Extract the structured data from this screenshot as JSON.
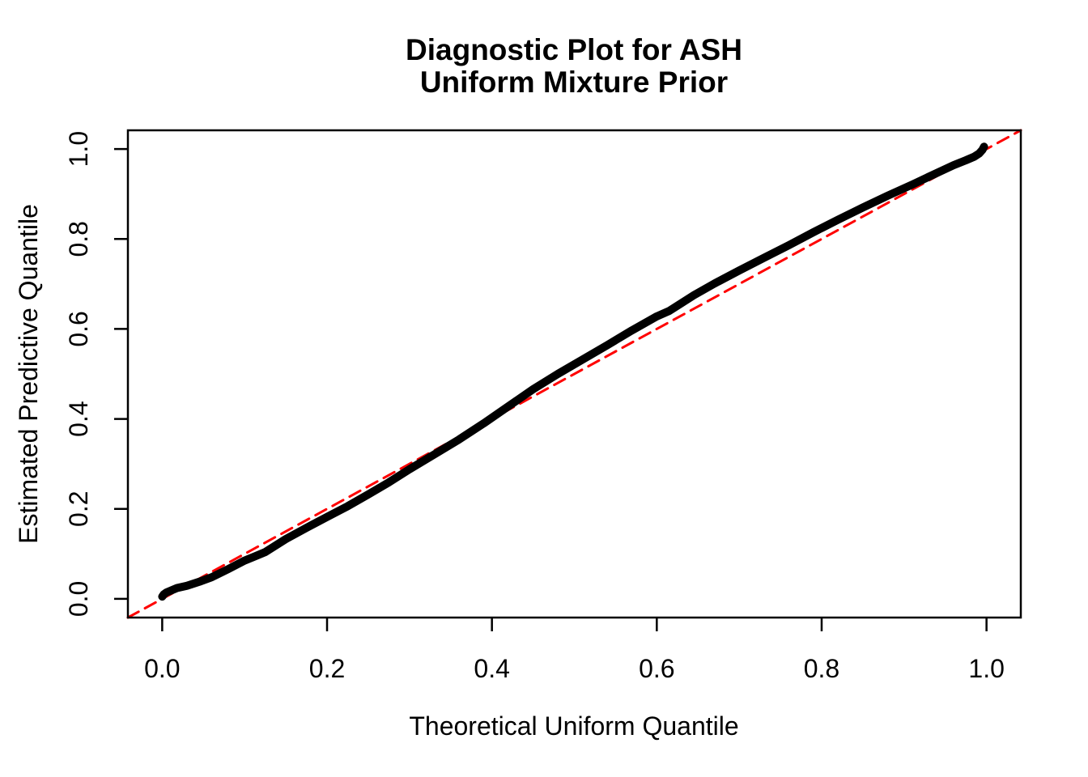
{
  "colors": {
    "background": "#FFFFFF",
    "frame": "#000000",
    "curve": "#000000",
    "reference_line": "#FF0000"
  },
  "chart_data": {
    "type": "line",
    "title_lines": [
      "Diagnostic Plot for ASH",
      "Uniform Mixture Prior"
    ],
    "xlabel": "Theoretical Uniform Quantile",
    "ylabel": "Estimated Predictive Quantile",
    "xlim": [
      -0.0416,
      1.0416
    ],
    "ylim": [
      -0.0416,
      1.0416
    ],
    "x_ticks": [
      0,
      0.2,
      0.4,
      0.6,
      0.8,
      1
    ],
    "x_tick_labels": [
      "0.0",
      "0.2",
      "0.4",
      "0.6",
      "0.8",
      "1.0"
    ],
    "y_ticks": [
      0,
      0.2,
      0.4,
      0.6,
      0.8,
      1
    ],
    "y_tick_labels": [
      "0.0",
      "0.2",
      "0.4",
      "0.6",
      "0.8",
      "1.0"
    ],
    "grid": false,
    "legend": null,
    "series": [
      {
        "name": "estimated-predictive-quantiles",
        "type": "line",
        "color": "#000000",
        "line_width": 10,
        "dash": null,
        "points": [
          [
            0.0,
            0.005
          ],
          [
            0.002,
            0.01
          ],
          [
            0.005,
            0.014
          ],
          [
            0.01,
            0.018
          ],
          [
            0.018,
            0.024
          ],
          [
            0.03,
            0.029
          ],
          [
            0.045,
            0.038
          ],
          [
            0.06,
            0.048
          ],
          [
            0.08,
            0.066
          ],
          [
            0.1,
            0.085
          ],
          [
            0.112,
            0.094
          ],
          [
            0.125,
            0.104
          ],
          [
            0.15,
            0.133
          ],
          [
            0.175,
            0.158
          ],
          [
            0.2,
            0.182
          ],
          [
            0.225,
            0.206
          ],
          [
            0.25,
            0.232
          ],
          [
            0.275,
            0.259
          ],
          [
            0.3,
            0.288
          ],
          [
            0.33,
            0.321
          ],
          [
            0.36,
            0.354
          ],
          [
            0.39,
            0.39
          ],
          [
            0.42,
            0.428
          ],
          [
            0.45,
            0.466
          ],
          [
            0.48,
            0.5
          ],
          [
            0.51,
            0.532
          ],
          [
            0.54,
            0.564
          ],
          [
            0.57,
            0.597
          ],
          [
            0.6,
            0.628
          ],
          [
            0.615,
            0.64
          ],
          [
            0.645,
            0.675
          ],
          [
            0.67,
            0.701
          ],
          [
            0.7,
            0.73
          ],
          [
            0.73,
            0.758
          ],
          [
            0.76,
            0.786
          ],
          [
            0.79,
            0.815
          ],
          [
            0.82,
            0.843
          ],
          [
            0.85,
            0.87
          ],
          [
            0.88,
            0.896
          ],
          [
            0.91,
            0.921
          ],
          [
            0.94,
            0.947
          ],
          [
            0.96,
            0.964
          ],
          [
            0.975,
            0.975
          ],
          [
            0.985,
            0.983
          ],
          [
            0.991,
            0.99
          ],
          [
            0.995,
            0.998
          ],
          [
            0.997,
            1.005
          ]
        ]
      },
      {
        "name": "identity-reference-line",
        "type": "line",
        "color": "#FF0000",
        "line_width": 3,
        "dash": [
          15,
          9
        ],
        "points": [
          [
            -0.0416,
            -0.0416
          ],
          [
            1.0416,
            1.0416
          ]
        ]
      }
    ]
  }
}
